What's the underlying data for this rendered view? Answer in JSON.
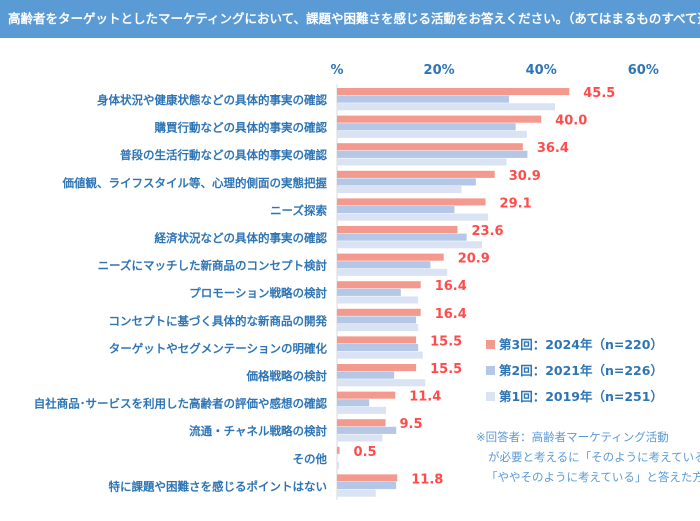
{
  "title": "高齢者をターゲットとしたマーケティングにおいて、課題や困難さを感じる活動をお答えください。（あてはまるものすべて選択）",
  "note": [
    "※回答者：高齢者マーケティング活動",
    "が必要と考えるに「そのように考えている」",
    "「ややそのように考えている」と答えた方"
  ],
  "chart_data": {
    "type": "bar",
    "orientation": "horizontal",
    "xlim": [
      0,
      60
    ],
    "tick_labels": [
      "%",
      "20%",
      "40%",
      "60%"
    ],
    "categories": [
      "身体状況や健康状態などの具体的事実の確認",
      "購買行動などの具体的事実の確認",
      "普段の生活行動などの具体的事実の確認",
      "価値観、ライフスタイル等、心理的側面の実態把握",
      "ニーズ探索",
      "経済状況などの具体的事実の確認",
      "ニーズにマッチした新商品のコンセプト検討",
      "プロモーション戦略の検討",
      "コンセプトに基づく具体的な新商品の開発",
      "ターゲットやセグメンテーションの明確化",
      "価格戦略の検討",
      "自社商品･サービスを利用した高齢者の評価や感想の確認",
      "流通・チャネル戦略の検討",
      "その他",
      "特に課題や困難さを感じるポイントはない"
    ],
    "series": [
      {
        "name": "第3回：2024年（n=220）",
        "color": "#f4998d",
        "labels": true,
        "values": [
          45.5,
          40.0,
          36.4,
          30.9,
          29.1,
          23.6,
          20.9,
          16.4,
          16.4,
          15.5,
          15.5,
          11.4,
          9.5,
          0.5,
          11.8
        ]
      },
      {
        "name": "第2回：2021年（n=226）",
        "color": "#b4c7e7",
        "values": [
          33.7,
          35.0,
          37.3,
          27.2,
          23.0,
          25.4,
          18.3,
          12.5,
          15.5,
          15.9,
          11.2,
          6.3,
          11.6,
          0,
          11.6
        ]
      },
      {
        "name": "第1回：2019年（n=251）",
        "color": "#dae3f3",
        "values": [
          42.7,
          37.2,
          33.2,
          24.4,
          29.6,
          28.4,
          21.6,
          15.9,
          15.9,
          16.8,
          17.3,
          9.6,
          8.9,
          0.4,
          7.6
        ]
      }
    ],
    "legend": "right"
  }
}
